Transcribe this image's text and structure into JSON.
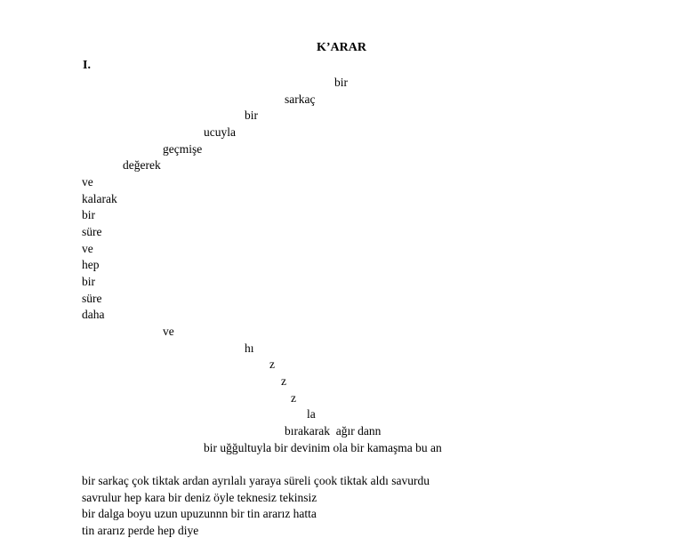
{
  "document": {
    "title": "K’ARAR",
    "section": "I.",
    "poem_lines": [
      "bir",
      "sarkaç",
      "bir",
      "ucuyla",
      "geçmişe",
      "değerek",
      "ve",
      "kalarak",
      "bir",
      "süre",
      "ve",
      "hep",
      "bir",
      "süre",
      "daha",
      "ve",
      "hı",
      "z",
      "z",
      "z",
      "la",
      "bırakarak  ağır dann",
      "bir uğğultuyla bir devinim ola bir kamaşma bu an",
      "bir sarkaç çok tiktak ardan ayrılalı yaraya süreli çook tiktak aldı savurdu",
      "savrulur hep kara bir deniz öyle teknesiz tekinsiz",
      "bir dalga boyu uzun upuzunnn bir tin ararız hatta",
      "tin ararız perde hep diye"
    ]
  }
}
